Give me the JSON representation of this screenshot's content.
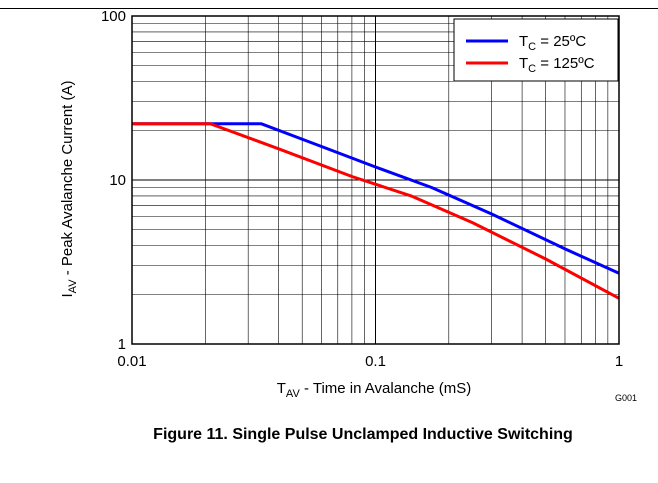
{
  "caption": "Figure 11. Single Pulse Unclamped Inductive Switching",
  "figure_code": "G001",
  "colors": {
    "series_25": "#0000ff",
    "series_125": "#ff0000",
    "grid": "#000000"
  },
  "chart_data": {
    "type": "line",
    "title": "",
    "xlabel": "T_AV - Time in Avalanche (mS)",
    "xlabel_main": "T",
    "xlabel_sub": "AV",
    "xlabel_rest": " - Time in Avalanche (mS)",
    "ylabel": "I_AV - Peak Avalanche Current (A)",
    "ylabel_main": "I",
    "ylabel_sub": "AV",
    "ylabel_rest": " - Peak Avalanche Current (A)",
    "x_scale": "log",
    "y_scale": "log",
    "xlim": [
      0.01,
      1
    ],
    "ylim": [
      1,
      100
    ],
    "x_ticks": [
      {
        "value": 0.01,
        "label": "0.01"
      },
      {
        "value": 0.1,
        "label": "0.1"
      },
      {
        "value": 1,
        "label": "1"
      }
    ],
    "y_ticks": [
      {
        "value": 1,
        "label": "1"
      },
      {
        "value": 10,
        "label": "10"
      },
      {
        "value": 100,
        "label": "100"
      }
    ],
    "grid": true,
    "legend_position": "top-right",
    "series": [
      {
        "name": "T_C = 25ºC",
        "name_main": "T",
        "name_sub": "C",
        "name_rest": " = 25ºC",
        "color": "#0000ff",
        "x": [
          0.01,
          0.034,
          0.06,
          0.1,
          0.17,
          0.3,
          0.6,
          1.0
        ],
        "y": [
          22,
          22,
          16,
          12,
          9,
          6.2,
          3.8,
          2.7
        ]
      },
      {
        "name": "T_C = 125ºC",
        "name_main": "T",
        "name_sub": "C",
        "name_rest": " = 125ºC",
        "color": "#ff0000",
        "x": [
          0.01,
          0.021,
          0.04,
          0.08,
          0.14,
          0.25,
          0.5,
          1.0
        ],
        "y": [
          22,
          22,
          15.5,
          10.5,
          8,
          5.5,
          3.3,
          1.9
        ]
      }
    ]
  }
}
